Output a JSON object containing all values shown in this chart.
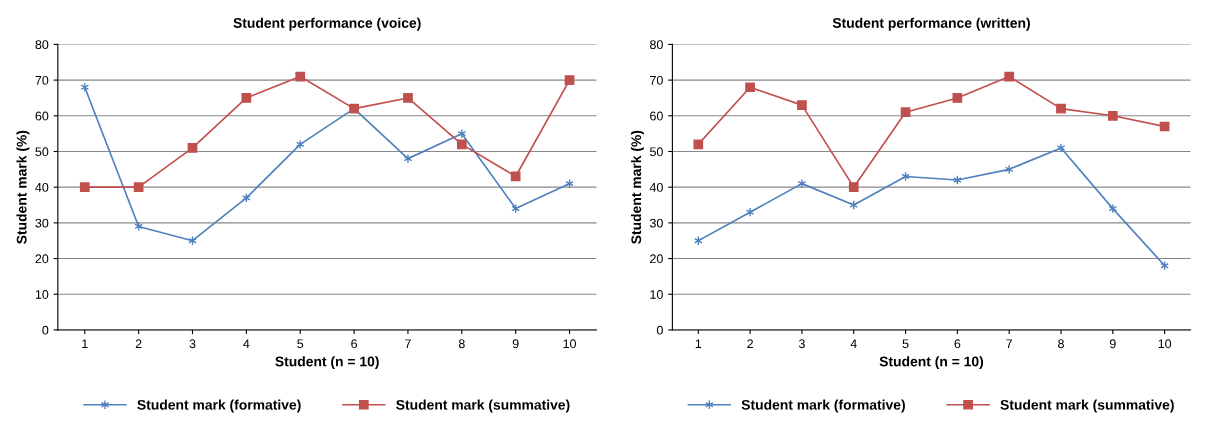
{
  "chart_data": [
    {
      "type": "line",
      "title": "Student performance (voice)",
      "xlabel": "Student (n = 10)",
      "ylabel": "Student mark (%)",
      "categories": [
        "1",
        "2",
        "3",
        "4",
        "5",
        "6",
        "7",
        "8",
        "9",
        "10"
      ],
      "ylim": [
        0,
        80
      ],
      "yticks": [
        0,
        10,
        20,
        30,
        40,
        50,
        60,
        70,
        80
      ],
      "grid": "y",
      "legend": "bottom",
      "line_style": "solid",
      "series": [
        {
          "name": "Student mark (formative)",
          "color": "#4f81bd",
          "marker": "cross",
          "values": [
            68,
            29,
            25,
            37,
            52,
            62,
            48,
            55,
            34,
            41
          ]
        },
        {
          "name": "Student mark (summative)",
          "color": "#c0504d",
          "marker": "square",
          "values": [
            40,
            40,
            51,
            65,
            71,
            62,
            65,
            52,
            43,
            70
          ]
        }
      ]
    },
    {
      "type": "line",
      "title": "Student performance (written)",
      "xlabel": "Student (n = 10)",
      "ylabel": "Student mark (%)",
      "categories": [
        "1",
        "2",
        "3",
        "4",
        "5",
        "6",
        "7",
        "8",
        "9",
        "10"
      ],
      "ylim": [
        0,
        80
      ],
      "yticks": [
        0,
        10,
        20,
        30,
        40,
        50,
        60,
        70,
        80
      ],
      "grid": "y",
      "legend": "bottom",
      "line_style": "solid",
      "series": [
        {
          "name": "Student mark (formative)",
          "color": "#4f81bd",
          "marker": "cross",
          "values": [
            25,
            33,
            41,
            35,
            43,
            42,
            45,
            51,
            34,
            18
          ]
        },
        {
          "name": "Student mark (summative)",
          "color": "#c0504d",
          "marker": "square",
          "values": [
            52,
            68,
            63,
            40,
            61,
            65,
            71,
            62,
            60,
            57
          ]
        }
      ]
    }
  ]
}
